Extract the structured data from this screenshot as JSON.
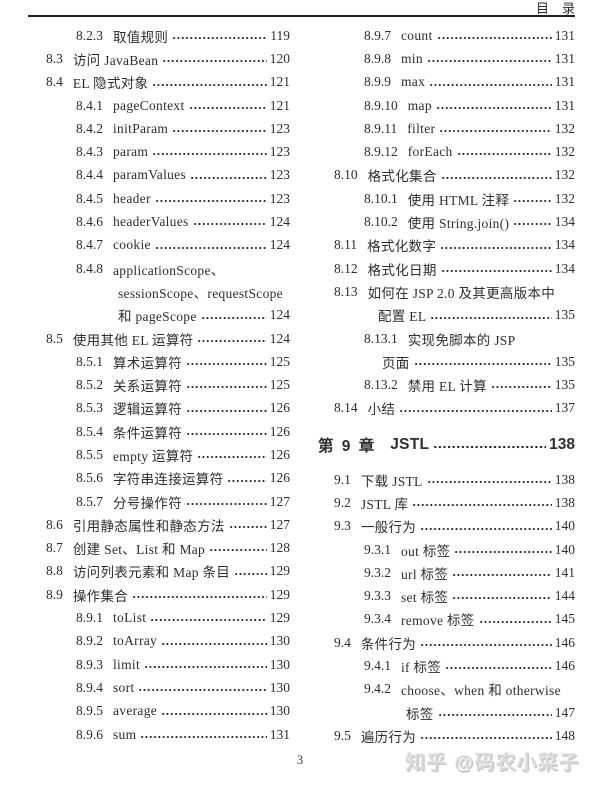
{
  "header": {
    "title": "目　录"
  },
  "footer": {
    "page_number": "3",
    "watermark": "知乎 @码农小菜子"
  },
  "colors": {
    "ink": "#2e2e2e",
    "watermark": "#d8d8d8"
  },
  "toc": {
    "left": [
      {
        "level": "sub",
        "num": "8.2.3",
        "text": "取值规则",
        "page": "119"
      },
      {
        "level": "sec",
        "num": "8.3",
        "text": "访问 JavaBean",
        "page": "120"
      },
      {
        "level": "sec",
        "num": "8.4",
        "text": "EL 隐式对象",
        "page": "121"
      },
      {
        "level": "sub",
        "num": "8.4.1",
        "text": "pageContext",
        "page": "121"
      },
      {
        "level": "sub",
        "num": "8.4.2",
        "text": "initParam",
        "page": "123"
      },
      {
        "level": "sub",
        "num": "8.4.3",
        "text": "param",
        "page": "123"
      },
      {
        "level": "sub",
        "num": "8.4.4",
        "text": "paramValues",
        "page": "123"
      },
      {
        "level": "sub",
        "num": "8.4.5",
        "text": "header",
        "page": "123"
      },
      {
        "level": "sub",
        "num": "8.4.6",
        "text": "headerValues",
        "page": "124"
      },
      {
        "level": "sub",
        "num": "8.4.7",
        "text": "cookie",
        "page": "124"
      },
      {
        "level": "sub",
        "num": "8.4.8",
        "text": "applicationScope、",
        "page": ""
      },
      {
        "level": "cont-sub",
        "num": "",
        "text": "sessionScope、requestScope",
        "page": ""
      },
      {
        "level": "cont-sub",
        "num": "",
        "text": "和 pageScope",
        "page": "124"
      },
      {
        "level": "sec",
        "num": "8.5",
        "text": "使用其他 EL 运算符",
        "page": "124"
      },
      {
        "level": "sub",
        "num": "8.5.1",
        "text": "算术运算符",
        "page": "125"
      },
      {
        "level": "sub",
        "num": "8.5.2",
        "text": "关系运算符",
        "page": "125"
      },
      {
        "level": "sub",
        "num": "8.5.3",
        "text": "逻辑运算符",
        "page": "126"
      },
      {
        "level": "sub",
        "num": "8.5.4",
        "text": "条件运算符",
        "page": "126"
      },
      {
        "level": "sub",
        "num": "8.5.5",
        "text": "empty 运算符",
        "page": "126"
      },
      {
        "level": "sub",
        "num": "8.5.6",
        "text": "字符串连接运算符",
        "page": "126"
      },
      {
        "level": "sub",
        "num": "8.5.7",
        "text": "分号操作符",
        "page": "127"
      },
      {
        "level": "sec",
        "num": "8.6",
        "text": "引用静态属性和静态方法",
        "page": "127"
      },
      {
        "level": "sec",
        "num": "8.7",
        "text": "创建 Set、List 和 Map",
        "page": "128"
      },
      {
        "level": "sec",
        "num": "8.8",
        "text": "访问列表元素和 Map 条目",
        "page": "129"
      },
      {
        "level": "sec",
        "num": "8.9",
        "text": "操作集合",
        "page": "129"
      },
      {
        "level": "sub",
        "num": "8.9.1",
        "text": "toList",
        "page": "129"
      },
      {
        "level": "sub",
        "num": "8.9.2",
        "text": "toArray",
        "page": "130"
      },
      {
        "level": "sub",
        "num": "8.9.3",
        "text": "limit",
        "page": "130"
      },
      {
        "level": "sub",
        "num": "8.9.4",
        "text": "sort",
        "page": "130"
      },
      {
        "level": "sub",
        "num": "8.9.5",
        "text": "average",
        "page": "130"
      },
      {
        "level": "sub",
        "num": "8.9.6",
        "text": "sum",
        "page": "131"
      }
    ],
    "right": [
      {
        "level": "sub",
        "num": "8.9.7",
        "text": "count",
        "page": "131"
      },
      {
        "level": "sub",
        "num": "8.9.8",
        "text": "min",
        "page": "131"
      },
      {
        "level": "sub",
        "num": "8.9.9",
        "text": "max",
        "page": "131"
      },
      {
        "level": "sub",
        "num": "8.9.10",
        "text": "map",
        "page": "131"
      },
      {
        "level": "sub",
        "num": "8.9.11",
        "text": "filter",
        "page": "132"
      },
      {
        "level": "sub",
        "num": "8.9.12",
        "text": "forEach",
        "page": "132"
      },
      {
        "level": "sec",
        "num": "8.10",
        "text": "格式化集合",
        "page": "132"
      },
      {
        "level": "sub",
        "num": "8.10.1",
        "text": "使用 HTML 注释",
        "page": "132"
      },
      {
        "level": "sub",
        "num": "8.10.2",
        "text": "使用 String.join()",
        "page": "134"
      },
      {
        "level": "sec",
        "num": "8.11",
        "text": "格式化数字",
        "page": "134"
      },
      {
        "level": "sec",
        "num": "8.12",
        "text": "格式化日期",
        "page": "134"
      },
      {
        "level": "sec",
        "num": "8.13",
        "text": "如何在 JSP 2.0 及其更高版本中",
        "page": ""
      },
      {
        "level": "cont-sec",
        "num": "",
        "text": "配置 EL",
        "page": "135"
      },
      {
        "level": "sub",
        "num": "8.13.1",
        "text": "实现免脚本的 JSP",
        "page": ""
      },
      {
        "level": "cont-sub-mid",
        "num": "",
        "text": "页面",
        "page": "135"
      },
      {
        "level": "sub",
        "num": "8.13.2",
        "text": "禁用 EL 计算",
        "page": "135"
      },
      {
        "level": "sec",
        "num": "8.14",
        "text": "小结",
        "page": "137"
      },
      {
        "level": "chapter",
        "num": "第 9 章",
        "text": "JSTL",
        "page": "138"
      },
      {
        "level": "sec",
        "num": "9.1",
        "text": "下载 JSTL",
        "page": "138"
      },
      {
        "level": "sec",
        "num": "9.2",
        "text": "JSTL 库",
        "page": "138"
      },
      {
        "level": "sec",
        "num": "9.3",
        "text": "一般行为",
        "page": "140"
      },
      {
        "level": "sub",
        "num": "9.3.1",
        "text": "out 标签",
        "page": "140"
      },
      {
        "level": "sub",
        "num": "9.3.2",
        "text": "url 标签",
        "page": "141"
      },
      {
        "level": "sub",
        "num": "9.3.3",
        "text": "set 标签",
        "page": "144"
      },
      {
        "level": "sub",
        "num": "9.3.4",
        "text": "remove 标签",
        "page": "145"
      },
      {
        "level": "sec",
        "num": "9.4",
        "text": "条件行为",
        "page": "146"
      },
      {
        "level": "sub",
        "num": "9.4.1",
        "text": "if 标签",
        "page": "146"
      },
      {
        "level": "sub",
        "num": "9.4.2",
        "text": "choose、when 和 otherwise",
        "page": ""
      },
      {
        "level": "cont-sub",
        "num": "",
        "text": "标签",
        "page": "147"
      },
      {
        "level": "sec",
        "num": "9.5",
        "text": "遍历行为",
        "page": "148"
      }
    ]
  }
}
